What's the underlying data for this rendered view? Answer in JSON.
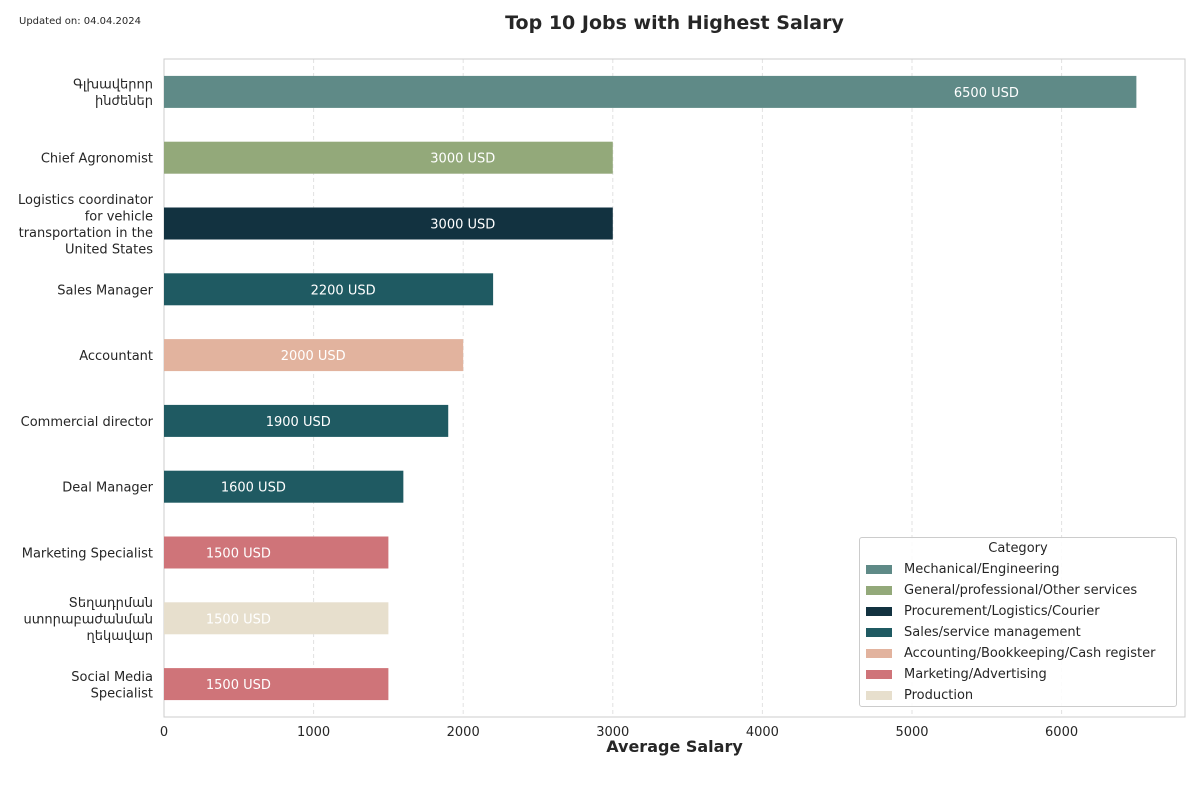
{
  "updated_note": "Updated on: 04.04.2024",
  "chart_data": {
    "type": "bar",
    "orientation": "horizontal",
    "title": "Top 10 Jobs with Highest Salary",
    "xlabel": "Average Salary",
    "ylabel": "",
    "xlim": [
      0,
      6825
    ],
    "xticks": [
      0,
      1000,
      2000,
      3000,
      4000,
      5000,
      6000
    ],
    "value_suffix": " USD",
    "grid": "vertical dashed",
    "legend_title": "Category",
    "legend_position": "bottom-right",
    "categories": [
      [
        "Գլխավերոր",
        "ինժեներ"
      ],
      [
        "Chief Agronomist"
      ],
      [
        "Logistics coordinator",
        "for vehicle",
        "transportation in the",
        "United States"
      ],
      [
        "Sales Manager"
      ],
      [
        "Accountant"
      ],
      [
        "Commercial director"
      ],
      [
        "Deal Manager"
      ],
      [
        "Marketing Specialist"
      ],
      [
        "Տեղադրման",
        "ստորաբաժանման",
        "ղեկավար"
      ],
      [
        "Social Media",
        "Specialist"
      ]
    ],
    "values": [
      6500,
      3000,
      3000,
      2200,
      2000,
      1900,
      1600,
      1500,
      1500,
      1500
    ],
    "bar_categories": [
      "Mechanical/Engineering",
      "General/professional/Other services",
      "Procurement/Logistics/Courier",
      "Sales/service management",
      "Accounting/Bookkeeping/Cash register",
      "Sales/service management",
      "Sales/service management",
      "Marketing/Advertising",
      "Production",
      "Marketing/Advertising"
    ],
    "legend": [
      {
        "name": "Mechanical/Engineering",
        "color": "#5f8a87"
      },
      {
        "name": "General/professional/Other services",
        "color": "#93a97a"
      },
      {
        "name": "Procurement/Logistics/Courier",
        "color": "#123240"
      },
      {
        "name": "Sales/service management",
        "color": "#1f5a62"
      },
      {
        "name": "Accounting/Bookkeeping/Cash register",
        "color": "#e2b39e"
      },
      {
        "name": "Marketing/Advertising",
        "color": "#cf7479"
      },
      {
        "name": "Production",
        "color": "#e7dfcd"
      }
    ]
  }
}
